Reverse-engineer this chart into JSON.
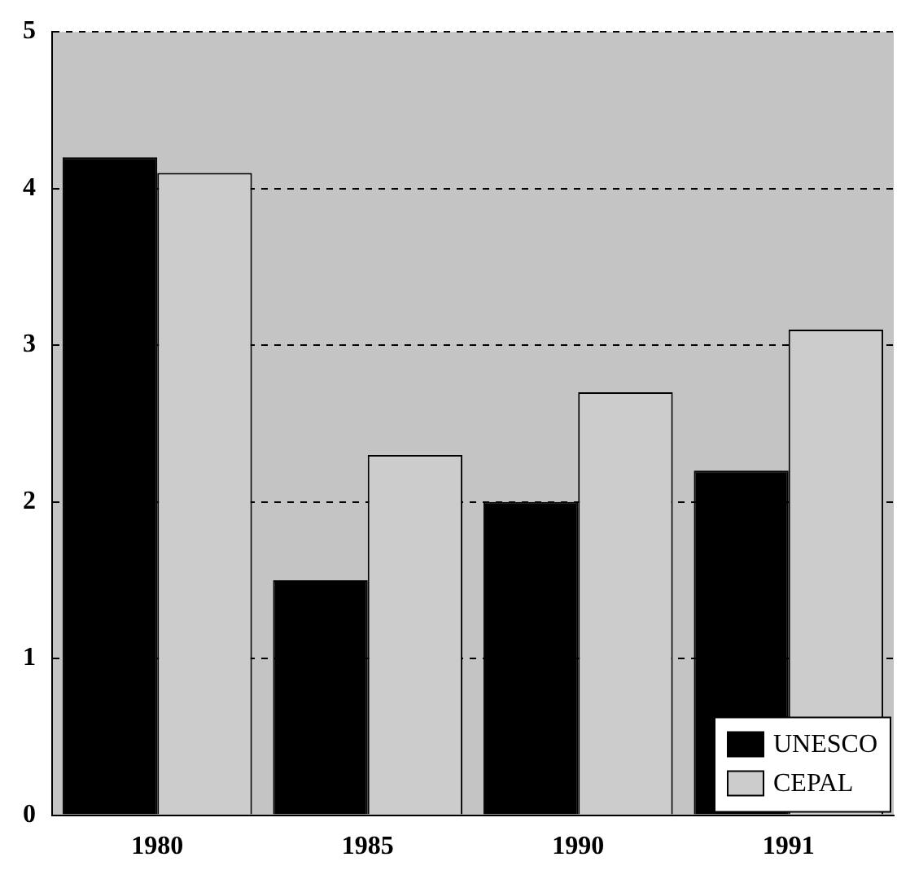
{
  "chart_data": {
    "type": "bar",
    "categories": [
      "1980",
      "1985",
      "1990",
      "1991"
    ],
    "series": [
      {
        "name": "UNESCO",
        "color": "#000000",
        "values": [
          4.2,
          1.5,
          2.0,
          2.2
        ]
      },
      {
        "name": "CEPAL",
        "color": "#cccccc",
        "values": [
          4.1,
          2.3,
          2.7,
          3.1
        ]
      }
    ],
    "ylim": [
      0,
      5
    ],
    "yticks": [
      0,
      1,
      2,
      3,
      4,
      5
    ],
    "grid": "y",
    "legend": "bottom right"
  }
}
